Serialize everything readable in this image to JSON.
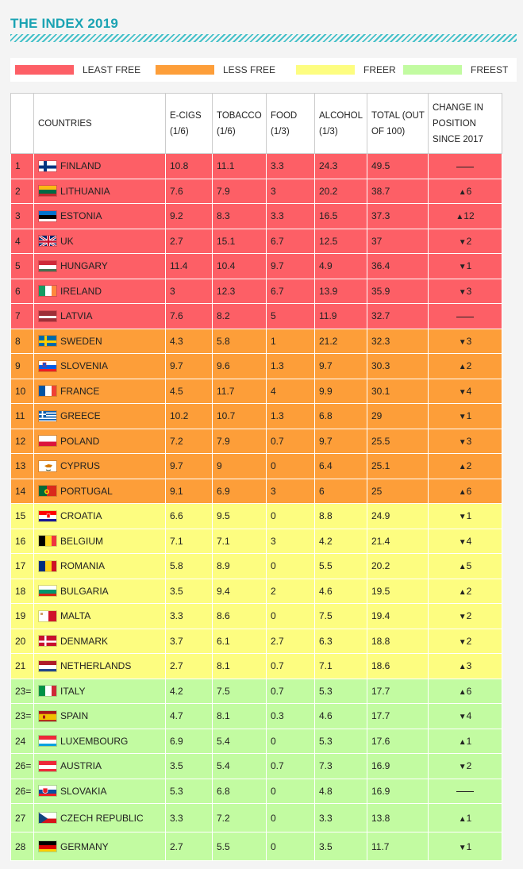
{
  "title": "THE INDEX 2019",
  "legend": [
    {
      "label": "LEAST FREE",
      "color": "#fd5f66"
    },
    {
      "label": "LESS FREE",
      "color": "#fd9e39"
    },
    {
      "label": "FREER",
      "color": "#fdfd80"
    },
    {
      "label": "FREEST",
      "color": "#c2fba1"
    }
  ],
  "headers": {
    "rank": "",
    "countries": "COUNTRIES",
    "ecigs": "E-CIGS (1/6)",
    "tobacco": "TOBACCO (1/6)",
    "food": "FOOD (1/3)",
    "alcohol": "ALCOHOL (1/3)",
    "total": "TOTAL (OUT OF 100)",
    "change": "CHANGE IN POSITION SINCE 2017"
  },
  "rows": [
    {
      "rank": "1",
      "country": "FINLAND",
      "flag": "finland-flag",
      "ecigs": "10.8",
      "tobacco": "11.1",
      "food": "3.3",
      "alcohol": "24.3",
      "total": "49.5",
      "dir": "none",
      "change": "",
      "tier": 1
    },
    {
      "rank": "2",
      "country": "LITHUANIA",
      "flag": "lithuania-flag",
      "ecigs": "7.6",
      "tobacco": "7.9",
      "food": "3",
      "alcohol": "20.2",
      "total": "38.7",
      "dir": "up",
      "change": "6",
      "tier": 1
    },
    {
      "rank": "3",
      "country": "ESTONIA",
      "flag": "estonia-flag",
      "ecigs": "9.2",
      "tobacco": "8.3",
      "food": "3.3",
      "alcohol": "16.5",
      "total": "37.3",
      "dir": "up",
      "change": "12",
      "tier": 1
    },
    {
      "rank": "4",
      "country": "UK",
      "flag": "uk-flag",
      "ecigs": "2.7",
      "tobacco": "15.1",
      "food": "6.7",
      "alcohol": "12.5",
      "total": "37",
      "dir": "down",
      "change": "2",
      "tier": 1
    },
    {
      "rank": "5",
      "country": "HUNGARY",
      "flag": "hungary-flag",
      "ecigs": "11.4",
      "tobacco": "10.4",
      "food": "9.7",
      "alcohol": "4.9",
      "total": "36.4",
      "dir": "down",
      "change": "1",
      "tier": 1
    },
    {
      "rank": "6",
      "country": "IRELAND",
      "flag": "ireland-flag",
      "ecigs": "3",
      "tobacco": "12.3",
      "food": "6.7",
      "alcohol": "13.9",
      "total": "35.9",
      "dir": "down",
      "change": "3",
      "tier": 1
    },
    {
      "rank": "7",
      "country": "LATVIA",
      "flag": "latvia-flag",
      "ecigs": "7.6",
      "tobacco": "8.2",
      "food": "5",
      "alcohol": "11.9",
      "total": "32.7",
      "dir": "none",
      "change": "",
      "tier": 1
    },
    {
      "rank": "8",
      "country": "SWEDEN",
      "flag": "sweden-flag",
      "ecigs": "4.3",
      "tobacco": "5.8",
      "food": "1",
      "alcohol": "21.2",
      "total": "32.3",
      "dir": "down",
      "change": "3",
      "tier": 2
    },
    {
      "rank": "9",
      "country": "SLOVENIA",
      "flag": "slovenia-flag",
      "ecigs": "9.7",
      "tobacco": "9.6",
      "food": "1.3",
      "alcohol": "9.7",
      "total": "30.3",
      "dir": "up",
      "change": "2",
      "tier": 2
    },
    {
      "rank": "10",
      "country": "FRANCE",
      "flag": "france-flag",
      "ecigs": "4.5",
      "tobacco": "11.7",
      "food": "4",
      "alcohol": "9.9",
      "total": "30.1",
      "dir": "down",
      "change": "4",
      "tier": 2
    },
    {
      "rank": "11",
      "country": "GREECE",
      "flag": "greece-flag",
      "ecigs": "10.2",
      "tobacco": "10.7",
      "food": "1.3",
      "alcohol": "6.8",
      "total": "29",
      "dir": "down",
      "change": "1",
      "tier": 2
    },
    {
      "rank": "12",
      "country": "POLAND",
      "flag": "poland-flag",
      "ecigs": "7.2",
      "tobacco": "7.9",
      "food": "0.7",
      "alcohol": "9.7",
      "total": "25.5",
      "dir": "down",
      "change": "3",
      "tier": 2
    },
    {
      "rank": "13",
      "country": "CYPRUS",
      "flag": "cyprus-flag",
      "ecigs": "9.7",
      "tobacco": "9",
      "food": "0",
      "alcohol": "6.4",
      "total": "25.1",
      "dir": "up",
      "change": "2",
      "tier": 2
    },
    {
      "rank": "14",
      "country": "PORTUGAL",
      "flag": "portugal-flag",
      "ecigs": "9.1",
      "tobacco": "6.9",
      "food": "3",
      "alcohol": "6",
      "total": "25",
      "dir": "up",
      "change": "6",
      "tier": 2
    },
    {
      "rank": "15",
      "country": "CROATIA",
      "flag": "croatia-flag",
      "ecigs": "6.6",
      "tobacco": "9.5",
      "food": "0",
      "alcohol": "8.8",
      "total": "24.9",
      "dir": "down",
      "change": "1",
      "tier": 3
    },
    {
      "rank": "16",
      "country": "BELGIUM",
      "flag": "belgium-flag",
      "ecigs": "7.1",
      "tobacco": "7.1",
      "food": "3",
      "alcohol": "4.2",
      "total": "21.4",
      "dir": "down",
      "change": "4",
      "tier": 3
    },
    {
      "rank": "17",
      "country": "ROMANIA",
      "flag": "romania-flag",
      "ecigs": "5.8",
      "tobacco": "8.9",
      "food": "0",
      "alcohol": "5.5",
      "total": "20.2",
      "dir": "up",
      "change": "5",
      "tier": 3
    },
    {
      "rank": "18",
      "country": "BULGARIA",
      "flag": "bulgaria-flag",
      "ecigs": "3.5",
      "tobacco": "9.4",
      "food": "2",
      "alcohol": "4.6",
      "total": "19.5",
      "dir": "up",
      "change": "2",
      "tier": 3
    },
    {
      "rank": "19",
      "country": "MALTA",
      "flag": "malta-flag",
      "ecigs": "3.3",
      "tobacco": "8.6",
      "food": "0",
      "alcohol": "7.5",
      "total": "19.4",
      "dir": "down",
      "change": "2",
      "tier": 3
    },
    {
      "rank": "20",
      "country": "DENMARK",
      "flag": "denmark-flag",
      "ecigs": "3.7",
      "tobacco": "6.1",
      "food": "2.7",
      "alcohol": "6.3",
      "total": "18.8",
      "dir": "down",
      "change": "2",
      "tier": 3
    },
    {
      "rank": "21",
      "country": "NETHERLANDS",
      "flag": "netherlands-flag",
      "ecigs": "2.7",
      "tobacco": "8.1",
      "food": "0.7",
      "alcohol": "7.1",
      "total": "18.6",
      "dir": "up",
      "change": "3",
      "tier": 3
    },
    {
      "rank": "23=",
      "country": "ITALY",
      "flag": "italy-flag",
      "ecigs": "4.2",
      "tobacco": "7.5",
      "food": "0.7",
      "alcohol": "5.3",
      "total": "17.7",
      "dir": "up",
      "change": "6",
      "tier": 4
    },
    {
      "rank": "23=",
      "country": "SPAIN",
      "flag": "spain-flag",
      "ecigs": "4.7",
      "tobacco": "8.1",
      "food": "0.3",
      "alcohol": "4.6",
      "total": "17.7",
      "dir": "down",
      "change": "4",
      "tier": 4
    },
    {
      "rank": "24",
      "country": "LUXEMBOURG",
      "flag": "luxembourg-flag",
      "ecigs": "6.9",
      "tobacco": "5.4",
      "food": "0",
      "alcohol": "5.3",
      "total": "17.6",
      "dir": "up",
      "change": "1",
      "tier": 4
    },
    {
      "rank": "26=",
      "country": "AUSTRIA",
      "flag": "austria-flag",
      "ecigs": "3.5",
      "tobacco": "5.4",
      "food": "0.7",
      "alcohol": "7.3",
      "total": "16.9",
      "dir": "down",
      "change": "2",
      "tier": 4
    },
    {
      "rank": "26=",
      "country": "SLOVAKIA",
      "flag": "slovakia-flag",
      "ecigs": "5.3",
      "tobacco": "6.8",
      "food": "0",
      "alcohol": "4.8",
      "total": "16.9",
      "dir": "none",
      "change": "",
      "tier": 4
    },
    {
      "rank": "27",
      "country": "CZECH REPUBLIC",
      "flag": "czech-republic-flag",
      "ecigs": "3.3",
      "tobacco": "7.2",
      "food": "0",
      "alcohol": "3.3",
      "total": "13.8",
      "dir": "up",
      "change": "1",
      "tier": 4
    },
    {
      "rank": "28",
      "country": "GERMANY",
      "flag": "germany-flag",
      "ecigs": "2.7",
      "tobacco": "5.5",
      "food": "0",
      "alcohol": "3.5",
      "total": "11.7",
      "dir": "down",
      "change": "1",
      "tier": 4
    }
  ]
}
